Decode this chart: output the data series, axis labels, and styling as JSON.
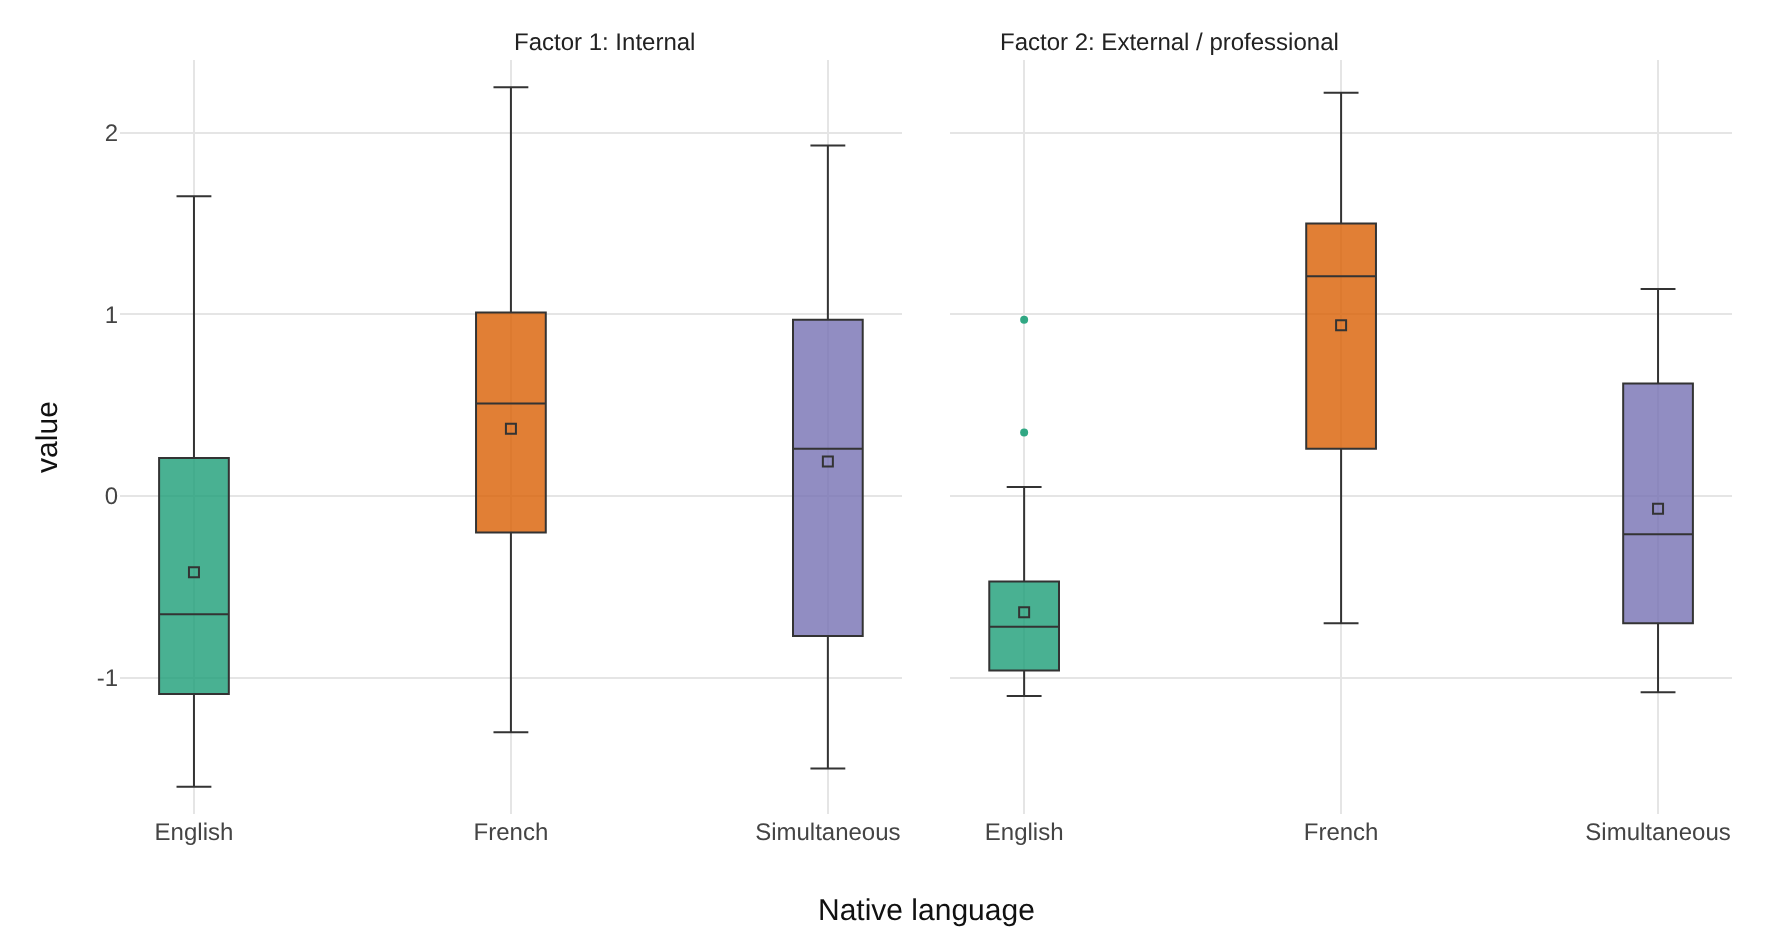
{
  "chart_data": [
    {
      "type": "box",
      "title": "Factor 1: Internal",
      "ylabel": "value",
      "xlabel": "Native language",
      "categories": [
        "English",
        "French",
        "Simultaneous"
      ],
      "colors": [
        "#1b9e77",
        "#d95f02",
        "#7570b3"
      ],
      "boxes": [
        {
          "low": -1.6,
          "q1": -1.09,
          "median": -0.65,
          "q3": 0.21,
          "high": 1.65,
          "mean": -0.42
        },
        {
          "low": -1.3,
          "q1": -0.2,
          "median": 0.51,
          "q3": 1.01,
          "high": 2.25,
          "mean": 0.37
        },
        {
          "low": -1.5,
          "q1": -0.77,
          "median": 0.26,
          "q3": 0.97,
          "high": 1.93,
          "mean": 0.19
        }
      ],
      "ylim": [
        -1.75,
        2.4
      ],
      "yticks": [
        -1,
        0,
        1,
        2
      ],
      "grid": true,
      "marker": "square"
    },
    {
      "type": "box",
      "title": "Factor 2: External / professional",
      "categories": [
        "English",
        "French",
        "Simultaneous"
      ],
      "colors": [
        "#1b9e77",
        "#d95f02",
        "#7570b3"
      ],
      "boxes": [
        {
          "low": -1.1,
          "q1": -0.96,
          "median": -0.72,
          "q3": -0.47,
          "high": 0.05,
          "mean": -0.64,
          "outliers": [
            0.35,
            0.97
          ]
        },
        {
          "low": -0.7,
          "q1": 0.26,
          "median": 1.21,
          "q3": 1.5,
          "high": 2.22,
          "mean": 0.94
        },
        {
          "low": -1.08,
          "q1": -0.7,
          "median": -0.21,
          "q3": 0.62,
          "high": 1.14,
          "mean": -0.07
        }
      ],
      "ylim": [
        -1.75,
        2.4
      ],
      "yticks": [
        -1,
        0,
        1,
        2
      ],
      "grid": true,
      "marker": "square",
      "tick_labels": "x"
    }
  ]
}
